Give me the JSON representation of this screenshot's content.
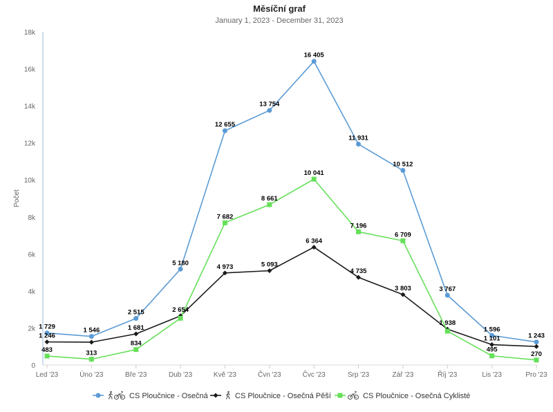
{
  "chart_data": {
    "type": "line",
    "title": "Měsíční graf",
    "subtitle": "January 1, 2023 - December 31, 2023",
    "ylabel": "Počet",
    "xlabel": "",
    "ylim": [
      0,
      18000
    ],
    "yticks": [
      0,
      2000,
      4000,
      6000,
      8000,
      10000,
      12000,
      14000,
      16000,
      18000
    ],
    "ytick_labels": [
      "0",
      "2k",
      "4k",
      "6k",
      "8k",
      "10k",
      "12k",
      "14k",
      "16k",
      "18k"
    ],
    "categories": [
      "Led '23",
      "Úno '23",
      "Bře '23",
      "Dub '23",
      "Kvě '23",
      "Čvn '23",
      "Čvc '23",
      "Srp '23",
      "Zář '23",
      "Říj '23",
      "Lis '23",
      "Pro '23"
    ],
    "grid": false,
    "legend_position": "bottom",
    "series": [
      {
        "name": "CS Ploučnice - Osečná",
        "color": "#5b9bd5",
        "marker": "circle",
        "icons": [
          "pedestrian-icon",
          "bicycle-icon"
        ],
        "values": [
          1729,
          1546,
          2515,
          5180,
          12655,
          13754,
          16405,
          11931,
          10512,
          3767,
          1596,
          1243
        ],
        "labels": [
          "1 729",
          "1 546",
          "2 515",
          "5 180",
          "12 655",
          "13 754",
          "16 405",
          "11 931",
          "10 512",
          "3 767",
          "1 596",
          "1 243"
        ]
      },
      {
        "name": "CS Ploučnice - Osečná Pěší",
        "color": "#1a1a1a",
        "marker": "diamond",
        "icons": [
          "pedestrian-icon"
        ],
        "values": [
          1246,
          1232,
          1681,
          2654,
          4973,
          5093,
          6364,
          4735,
          3803,
          1938,
          1101,
          1000
        ],
        "labels": [
          "1 246",
          "",
          "1 681",
          "2 654",
          "4 973",
          "5 093",
          "6 364",
          "4 735",
          "3 803",
          "1 938",
          "1 101",
          ""
        ]
      },
      {
        "name": "CS Ploučnice - Osečná Cyklisté",
        "color": "#66e05a",
        "marker": "square",
        "icons": [
          "bicycle-icon"
        ],
        "values": [
          483,
          313,
          834,
          2526,
          7682,
          8661,
          10041,
          7196,
          6709,
          1829,
          495,
          270
        ],
        "labels": [
          "483",
          "313",
          "834",
          "",
          "7 682",
          "8 661",
          "10 041",
          "7 196",
          "6 709",
          "",
          "495",
          "270"
        ]
      }
    ]
  }
}
